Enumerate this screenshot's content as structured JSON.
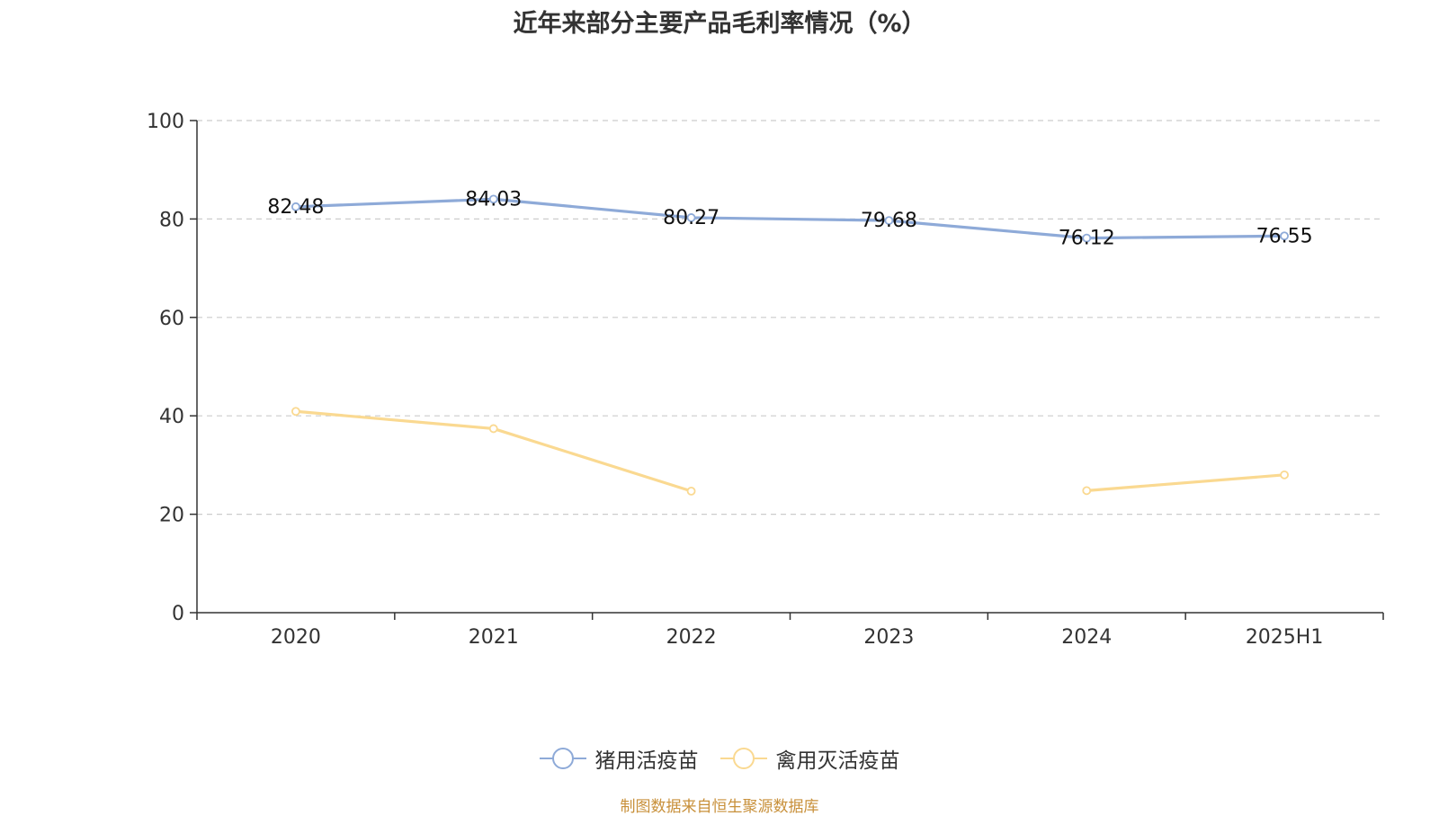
{
  "title": "近年来部分主要产品毛利率情况（%）",
  "source": "制图数据来自恒生聚源数据库",
  "colors": {
    "series1": "#8eaad8",
    "series2": "#fad991",
    "axis": "#333333",
    "grid": "#cccccc"
  },
  "chart_data": {
    "type": "line",
    "title": "近年来部分主要产品毛利率情况（%）",
    "categories": [
      "2020",
      "2021",
      "2022",
      "2023",
      "2024",
      "2025H1"
    ],
    "ylim": [
      0,
      100
    ],
    "yticks": [
      "0",
      "20",
      "40",
      "60",
      "80",
      "100"
    ],
    "grid": true,
    "legend": "bottom-center",
    "series": [
      {
        "name": "猪用活疫苗",
        "values": [
          82.48,
          84.03,
          80.27,
          79.68,
          76.12,
          76.55
        ],
        "labels": [
          "82.48",
          "84.03",
          "80.27",
          "79.68",
          "76.12",
          "76.55"
        ]
      },
      {
        "name": "禽用灭活疫苗",
        "values": [
          40.9,
          37.4,
          24.7,
          null,
          24.8,
          28.0
        ]
      }
    ]
  }
}
